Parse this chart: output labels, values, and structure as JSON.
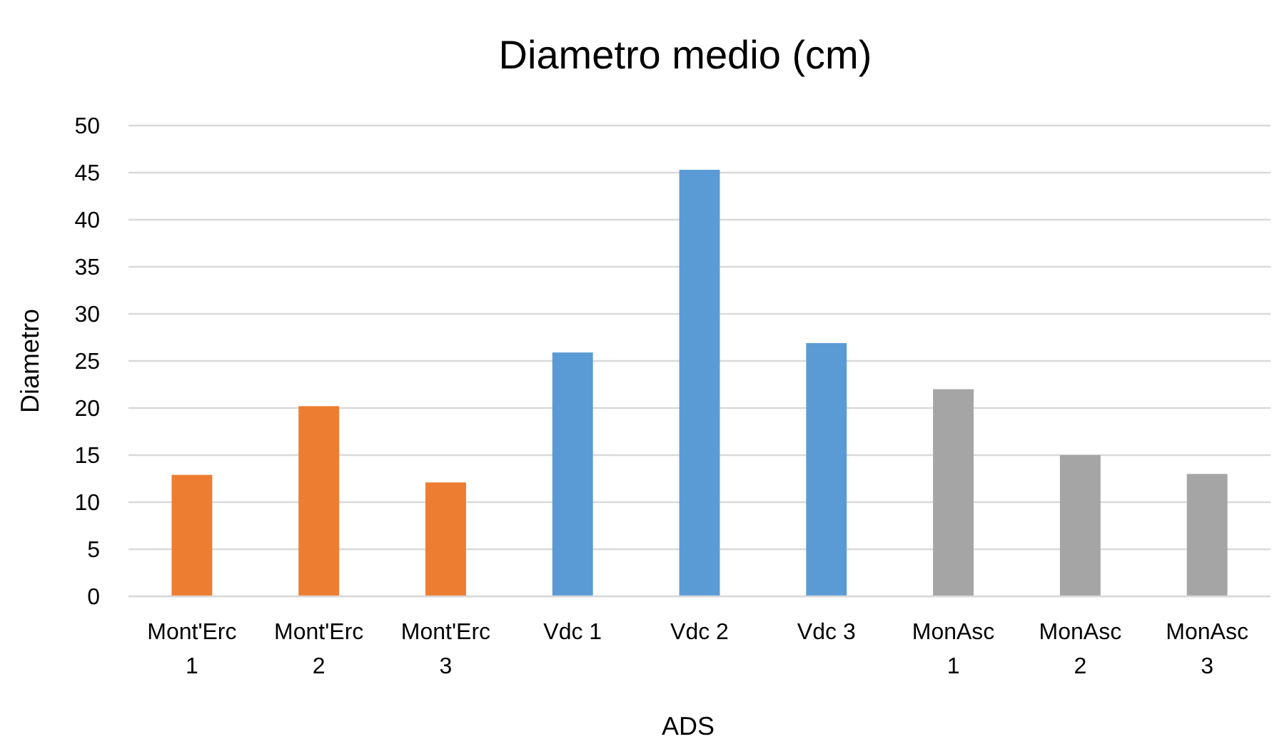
{
  "chart_data": {
    "type": "bar",
    "title": "Diametro medio (cm)",
    "xlabel": "ADS",
    "ylabel": "Diametro",
    "categories": [
      "Mont'Erc 1",
      "Mont'Erc 2",
      "Mont'Erc 3",
      "Vdc 1",
      "Vdc 2",
      "Vdc 3",
      "MonAsc 1",
      "MonAsc 2",
      "MonAsc 3"
    ],
    "values": [
      12.9,
      20.2,
      12.1,
      25.9,
      45.3,
      26.9,
      22.0,
      15.0,
      13.0
    ],
    "colors": [
      "#ed7d31",
      "#ed7d31",
      "#ed7d31",
      "#5b9bd5",
      "#5b9bd5",
      "#5b9bd5",
      "#a5a5a5",
      "#a5a5a5",
      "#a5a5a5"
    ],
    "ylim": [
      0,
      50
    ],
    "yticks": [
      0,
      5,
      10,
      15,
      20,
      25,
      30,
      35,
      40,
      45,
      50
    ],
    "grid": "y"
  }
}
